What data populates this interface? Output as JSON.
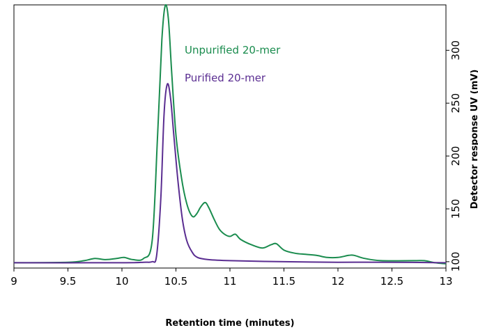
{
  "chart_data": {
    "type": "line",
    "xlabel": "Retention time (minutes)",
    "ylabel": "Detector response UV (mV)",
    "xlim": [
      9,
      13
    ],
    "ylim": [
      94,
      343
    ],
    "x_ticks": [
      "9",
      "9.5",
      "10",
      "10.5",
      "11",
      "11.5",
      "12",
      "12.5",
      "13"
    ],
    "y_ticks": [
      "100",
      "150",
      "200",
      "250",
      "300"
    ],
    "y_axis_position": "right",
    "grid": false,
    "legend": "inline labels near peak",
    "series": [
      {
        "name": "Unpurified 20-mer",
        "color": "#1a8c4e",
        "x": [
          9.0,
          9.5,
          9.65,
          9.75,
          9.85,
          9.95,
          10.02,
          10.1,
          10.2,
          10.28,
          10.33,
          10.37,
          10.4,
          10.43,
          10.46,
          10.5,
          10.55,
          10.6,
          10.65,
          10.69,
          10.73,
          10.77,
          10.8,
          10.85,
          10.9,
          10.95,
          11.0,
          11.05,
          11.1,
          11.2,
          11.3,
          11.38,
          11.43,
          11.5,
          11.6,
          11.7,
          11.8,
          11.9,
          12.0,
          12.1,
          12.15,
          12.25,
          12.4,
          12.7,
          12.8,
          12.9,
          13.0
        ],
        "y": [
          99,
          99.5,
          101,
          103,
          102,
          103,
          104,
          102,
          103,
          120,
          220,
          310,
          342,
          330,
          280,
          220,
          180,
          155,
          143,
          145,
          152,
          156,
          152,
          141,
          131,
          126,
          124,
          126,
          121,
          116,
          113,
          116,
          117,
          111,
          108,
          107,
          106,
          104,
          104,
          106,
          106,
          103,
          101,
          101,
          101,
          99,
          98
        ]
      },
      {
        "name": "Purified 20-mer",
        "color": "#5a2d91",
        "x": [
          9.0,
          10.0,
          10.2,
          10.28,
          10.32,
          10.36,
          10.39,
          10.42,
          10.45,
          10.48,
          10.52,
          10.56,
          10.6,
          10.65,
          10.7,
          10.8,
          11.0,
          11.5,
          12.0,
          12.5,
          13.0
        ],
        "y": [
          99,
          99,
          99.5,
          100,
          105,
          160,
          240,
          268,
          255,
          220,
          175,
          140,
          120,
          109,
          104,
          102,
          101,
          100,
          99.5,
          99.5,
          99
        ]
      }
    ]
  }
}
